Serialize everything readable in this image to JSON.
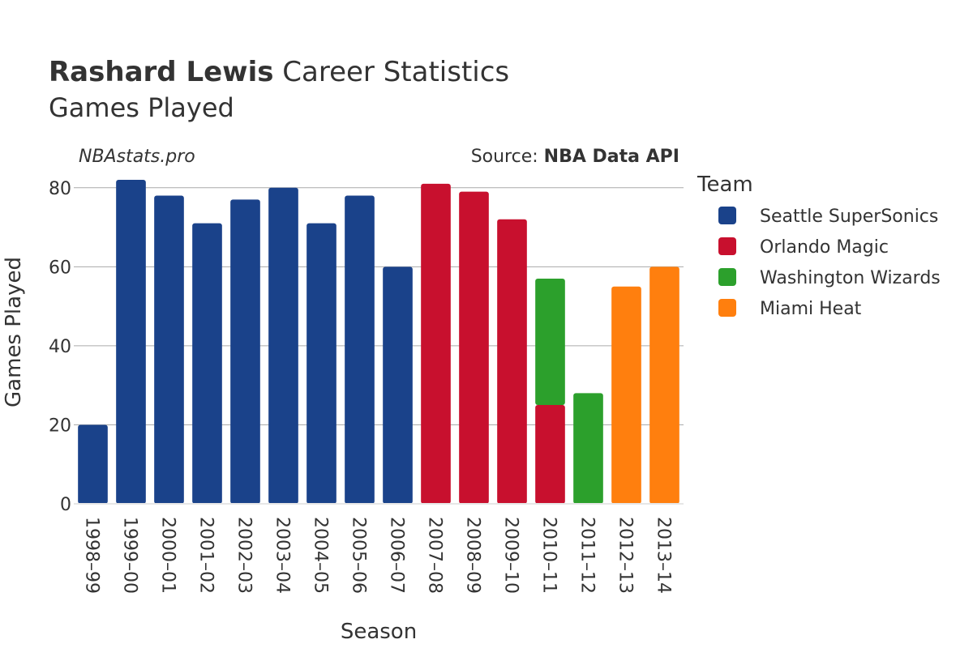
{
  "title": {
    "player": "Rashard Lewis",
    "rest": " Career Statistics",
    "subtitle": "Games Played"
  },
  "watermark": "NBAstats.pro",
  "source": {
    "prefix": "Source: ",
    "name": "NBA Data API"
  },
  "legend": {
    "title": "Team"
  },
  "chart_data": {
    "type": "bar",
    "stacked": true,
    "xlabel": "Season",
    "ylabel": "Games Played",
    "ylim": [
      0,
      82
    ],
    "yticks": [
      0,
      20,
      40,
      60,
      80
    ],
    "grid": true,
    "legend_position": "right",
    "categories": [
      "1998–99",
      "1999–00",
      "2000–01",
      "2001–02",
      "2002–03",
      "2003–04",
      "2004–05",
      "2005–06",
      "2006–07",
      "2007–08",
      "2008–09",
      "2009–10",
      "2010–11",
      "2011–12",
      "2012–13",
      "2013–14"
    ],
    "series": [
      {
        "name": "Seattle SuperSonics",
        "color": "#1a428a",
        "values": [
          20,
          82,
          78,
          71,
          77,
          80,
          71,
          78,
          60,
          0,
          0,
          0,
          0,
          0,
          0,
          0
        ]
      },
      {
        "name": "Orlando Magic",
        "color": "#c8102e",
        "values": [
          0,
          0,
          0,
          0,
          0,
          0,
          0,
          0,
          0,
          81,
          79,
          72,
          25,
          0,
          0,
          0
        ]
      },
      {
        "name": "Washington Wizards",
        "color": "#2ca02c",
        "values": [
          0,
          0,
          0,
          0,
          0,
          0,
          0,
          0,
          0,
          0,
          0,
          0,
          32,
          28,
          0,
          0
        ]
      },
      {
        "name": "Miami Heat",
        "color": "#ff7f0e",
        "values": [
          0,
          0,
          0,
          0,
          0,
          0,
          0,
          0,
          0,
          0,
          0,
          0,
          0,
          0,
          55,
          60
        ]
      }
    ]
  }
}
